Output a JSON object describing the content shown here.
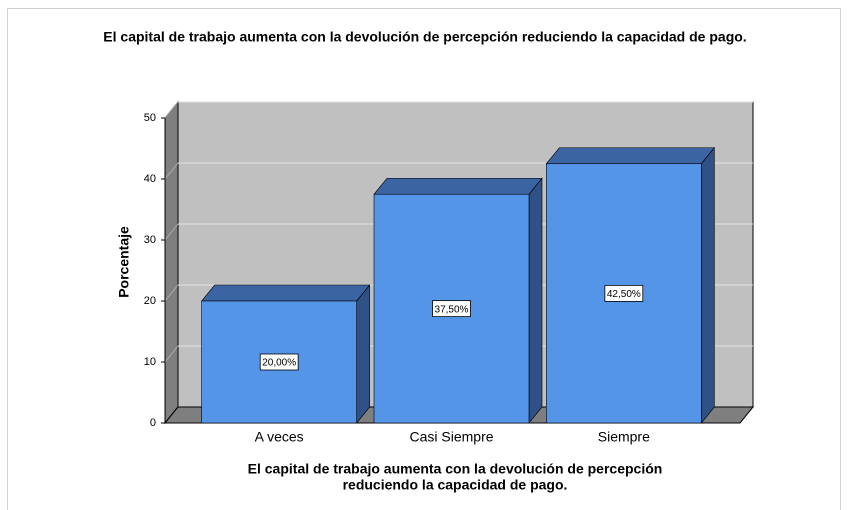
{
  "chart_data": {
    "type": "bar3d",
    "title": "El capital de trabajo aumenta con la devolución de percepción reduciendo la capacidad de pago.",
    "ylabel": "Porcentaje",
    "xlabel": [
      "El capital de trabajo aumenta con la devolución de percepción",
      "reduciendo la capacidad de pago."
    ],
    "categories": [
      "A veces",
      "Casi Siempre",
      "Siempre"
    ],
    "values": [
      20,
      37.5,
      42.5
    ],
    "value_labels": [
      "20,00%",
      "37,50%",
      "42,50%"
    ],
    "color": "#5595e8",
    "ylim": [
      0,
      50
    ],
    "yticks": [
      0,
      10,
      20,
      30,
      40,
      50
    ],
    "grid": true
  }
}
